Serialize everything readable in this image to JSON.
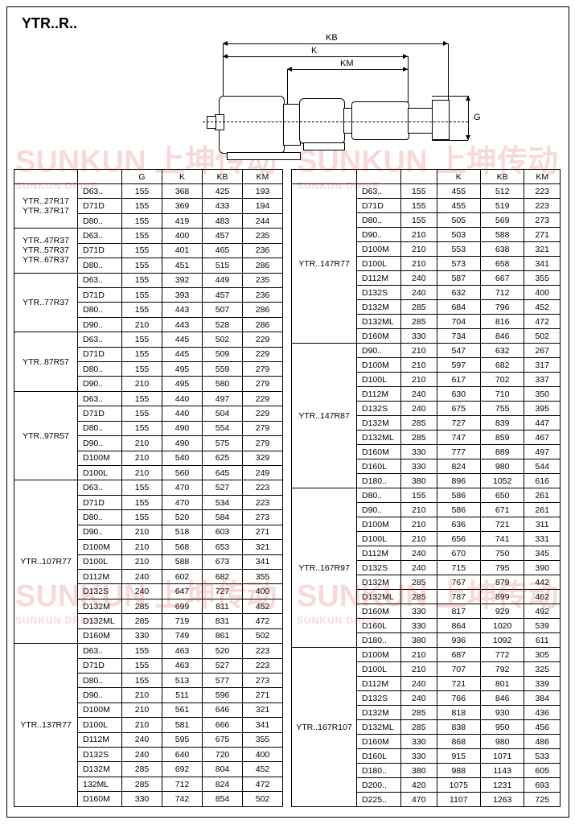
{
  "title": "YTR..R..",
  "dims": {
    "KB": "KB",
    "K": "K",
    "KM": "KM",
    "G": "G"
  },
  "watermark": {
    "main": "SUNKUN 上坤传动",
    "sub": "SUNKUN DRIVE"
  },
  "leftHeaders": [
    "",
    "",
    "G",
    "K",
    "KB",
    "KM"
  ],
  "rightHeaders": [
    "",
    "",
    "",
    "K",
    "KB",
    "KM"
  ],
  "leftGroups": [
    {
      "label": "YTR..27R17\nYTR..37R17",
      "rows": [
        [
          "D63..",
          "155",
          "368",
          "425",
          "193"
        ],
        [
          "D71D",
          "155",
          "369",
          "433",
          "194"
        ],
        [
          "D80..",
          "155",
          "419",
          "483",
          "244"
        ]
      ]
    },
    {
      "label": "YTR..47R37\nYTR..57R37\nYTR..67R37",
      "rows": [
        [
          "D63..",
          "155",
          "400",
          "457",
          "235"
        ],
        [
          "D71D",
          "155",
          "401",
          "465",
          "236"
        ],
        [
          "D80..",
          "155",
          "451",
          "515",
          "286"
        ]
      ]
    },
    {
      "label": "YTR..77R37",
      "rows": [
        [
          "D63..",
          "155",
          "392",
          "449",
          "235"
        ],
        [
          "D71D",
          "155",
          "393",
          "457",
          "236"
        ],
        [
          "D80..",
          "155",
          "443",
          "507",
          "286"
        ],
        [
          "D90..",
          "210",
          "443",
          "528",
          "286"
        ]
      ]
    },
    {
      "label": "YTR..87R57",
      "rows": [
        [
          "D63..",
          "155",
          "445",
          "502",
          "229"
        ],
        [
          "D71D",
          "155",
          "445",
          "509",
          "229"
        ],
        [
          "D80..",
          "155",
          "495",
          "559",
          "279"
        ],
        [
          "D90..",
          "210",
          "495",
          "580",
          "279"
        ]
      ]
    },
    {
      "label": "YTR..97R57",
      "rows": [
        [
          "D63..",
          "155",
          "440",
          "497",
          "229"
        ],
        [
          "D71D",
          "155",
          "440",
          "504",
          "229"
        ],
        [
          "D80..",
          "155",
          "490",
          "554",
          "279"
        ],
        [
          "D90..",
          "210",
          "490",
          "575",
          "279"
        ],
        [
          "D100M",
          "210",
          "540",
          "625",
          "329"
        ],
        [
          "D100L",
          "210",
          "560",
          "645",
          "249"
        ]
      ]
    },
    {
      "label": "YTR..107R77",
      "rows": [
        [
          "D63..",
          "155",
          "470",
          "527",
          "223"
        ],
        [
          "D71D",
          "155",
          "470",
          "534",
          "223"
        ],
        [
          "D80..",
          "155",
          "520",
          "584",
          "273"
        ],
        [
          "D90..",
          "210",
          "518",
          "603",
          "271"
        ],
        [
          "D100M",
          "210",
          "568",
          "653",
          "321"
        ],
        [
          "D100L",
          "210",
          "588",
          "673",
          "341"
        ],
        [
          "D112M",
          "240",
          "602",
          "682",
          "355"
        ],
        [
          "D132S",
          "240",
          "647",
          "727",
          "400"
        ],
        [
          "D132M",
          "285",
          "699",
          "811",
          "452"
        ],
        [
          "D132ML",
          "285",
          "719",
          "831",
          "472"
        ],
        [
          "D160M",
          "330",
          "749",
          "861",
          "502"
        ]
      ]
    },
    {
      "label": "YTR..137R77",
      "rows": [
        [
          "D63..",
          "155",
          "463",
          "520",
          "223"
        ],
        [
          "D71D",
          "155",
          "463",
          "527",
          "223"
        ],
        [
          "D80..",
          "155",
          "513",
          "577",
          "273"
        ],
        [
          "D90..",
          "210",
          "511",
          "596",
          "271"
        ],
        [
          "D100M",
          "210",
          "561",
          "646",
          "321"
        ],
        [
          "D100L",
          "210",
          "581",
          "666",
          "341"
        ],
        [
          "D112M",
          "240",
          "595",
          "675",
          "355"
        ],
        [
          "D132S",
          "240",
          "640",
          "720",
          "400"
        ],
        [
          "D132M",
          "285",
          "692",
          "804",
          "452"
        ],
        [
          "132ML",
          "285",
          "712",
          "824",
          "472"
        ],
        [
          "D160M",
          "330",
          "742",
          "854",
          "502"
        ]
      ]
    }
  ],
  "rightGroups": [
    {
      "label": "YTR..147R77",
      "rows": [
        [
          "D63..",
          "155",
          "455",
          "512",
          "223"
        ],
        [
          "D71D",
          "155",
          "455",
          "519",
          "223"
        ],
        [
          "D80..",
          "155",
          "505",
          "569",
          "273"
        ],
        [
          "D90..",
          "210",
          "503",
          "588",
          "271"
        ],
        [
          "D100M",
          "210",
          "553",
          "638",
          "321"
        ],
        [
          "D100L",
          "210",
          "573",
          "658",
          "341"
        ],
        [
          "D112M",
          "240",
          "587",
          "667",
          "355"
        ],
        [
          "D132S",
          "240",
          "632",
          "712",
          "400"
        ],
        [
          "D132M",
          "285",
          "684",
          "796",
          "452"
        ],
        [
          "D132ML",
          "285",
          "704",
          "816",
          "472"
        ],
        [
          "D160M",
          "330",
          "734",
          "846",
          "502"
        ]
      ]
    },
    {
      "label": "YTR..147R87",
      "rows": [
        [
          "D90..",
          "210",
          "547",
          "632",
          "267"
        ],
        [
          "D100M",
          "210",
          "597",
          "682",
          "317"
        ],
        [
          "D100L",
          "210",
          "617",
          "702",
          "337"
        ],
        [
          "D112M",
          "240",
          "630",
          "710",
          "350"
        ],
        [
          "D132S",
          "240",
          "675",
          "755",
          "395"
        ],
        [
          "D132M",
          "285",
          "727",
          "839",
          "447"
        ],
        [
          "D132ML",
          "285",
          "747",
          "859",
          "467"
        ],
        [
          "D160M",
          "330",
          "777",
          "889",
          "497"
        ],
        [
          "D160L",
          "330",
          "824",
          "980",
          "544"
        ],
        [
          "D180..",
          "380",
          "896",
          "1052",
          "616"
        ]
      ]
    },
    {
      "label": "YTR..167R97",
      "rows": [
        [
          "D80..",
          "155",
          "586",
          "650",
          "261"
        ],
        [
          "D90..",
          "210",
          "586",
          "671",
          "261"
        ],
        [
          "D100M",
          "210",
          "636",
          "721",
          "311"
        ],
        [
          "D100L",
          "210",
          "656",
          "741",
          "331"
        ],
        [
          "D112M",
          "240",
          "670",
          "750",
          "345"
        ],
        [
          "D132S",
          "240",
          "715",
          "795",
          "390"
        ],
        [
          "D132M",
          "285",
          "767",
          "879",
          "442"
        ],
        [
          "D132ML",
          "285",
          "787",
          "899",
          "462"
        ],
        [
          "D160M",
          "330",
          "817",
          "929",
          "492"
        ],
        [
          "D160L",
          "330",
          "864",
          "1020",
          "539"
        ],
        [
          "D180..",
          "380",
          "936",
          "1092",
          "611"
        ]
      ]
    },
    {
      "label": "YTR..167R107",
      "rows": [
        [
          "D100M",
          "210",
          "687",
          "772",
          "305"
        ],
        [
          "D100L",
          "210",
          "707",
          "792",
          "325"
        ],
        [
          "D112M",
          "240",
          "721",
          "801",
          "339"
        ],
        [
          "D132S",
          "240",
          "766",
          "846",
          "384"
        ],
        [
          "D132M",
          "285",
          "818",
          "930",
          "436"
        ],
        [
          "D132ML",
          "285",
          "838",
          "950",
          "456"
        ],
        [
          "D160M",
          "330",
          "868",
          "980",
          "486"
        ],
        [
          "D160L",
          "330",
          "915",
          "1071",
          "533"
        ],
        [
          "D180..",
          "380",
          "988",
          "1143",
          "605"
        ],
        [
          "D200..",
          "420",
          "1075",
          "1231",
          "693"
        ],
        [
          "D225..",
          "470",
          "1107",
          "1263",
          "725"
        ]
      ]
    }
  ]
}
